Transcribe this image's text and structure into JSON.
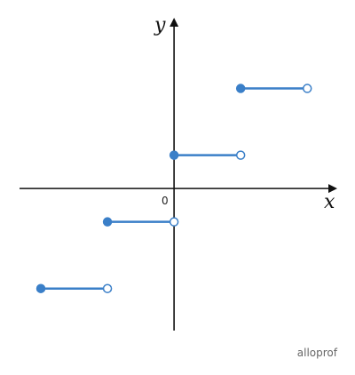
{
  "chart_data": {
    "type": "step",
    "x_label": "x",
    "y_label": "y",
    "origin_label": "0",
    "xlim": [
      -2.32,
      2.45
    ],
    "ylim": [
      -2.13,
      2.56
    ],
    "color": "#3a7fc8",
    "closed_end": "left",
    "segments": [
      {
        "x": [
          -2,
          -1
        ],
        "y": -1.5
      },
      {
        "x": [
          -1,
          0
        ],
        "y": -0.5
      },
      {
        "x": [
          0,
          1
        ],
        "y": 0.5
      },
      {
        "x": [
          1,
          2
        ],
        "y": 1.5
      }
    ],
    "watermark": "alloprof"
  }
}
